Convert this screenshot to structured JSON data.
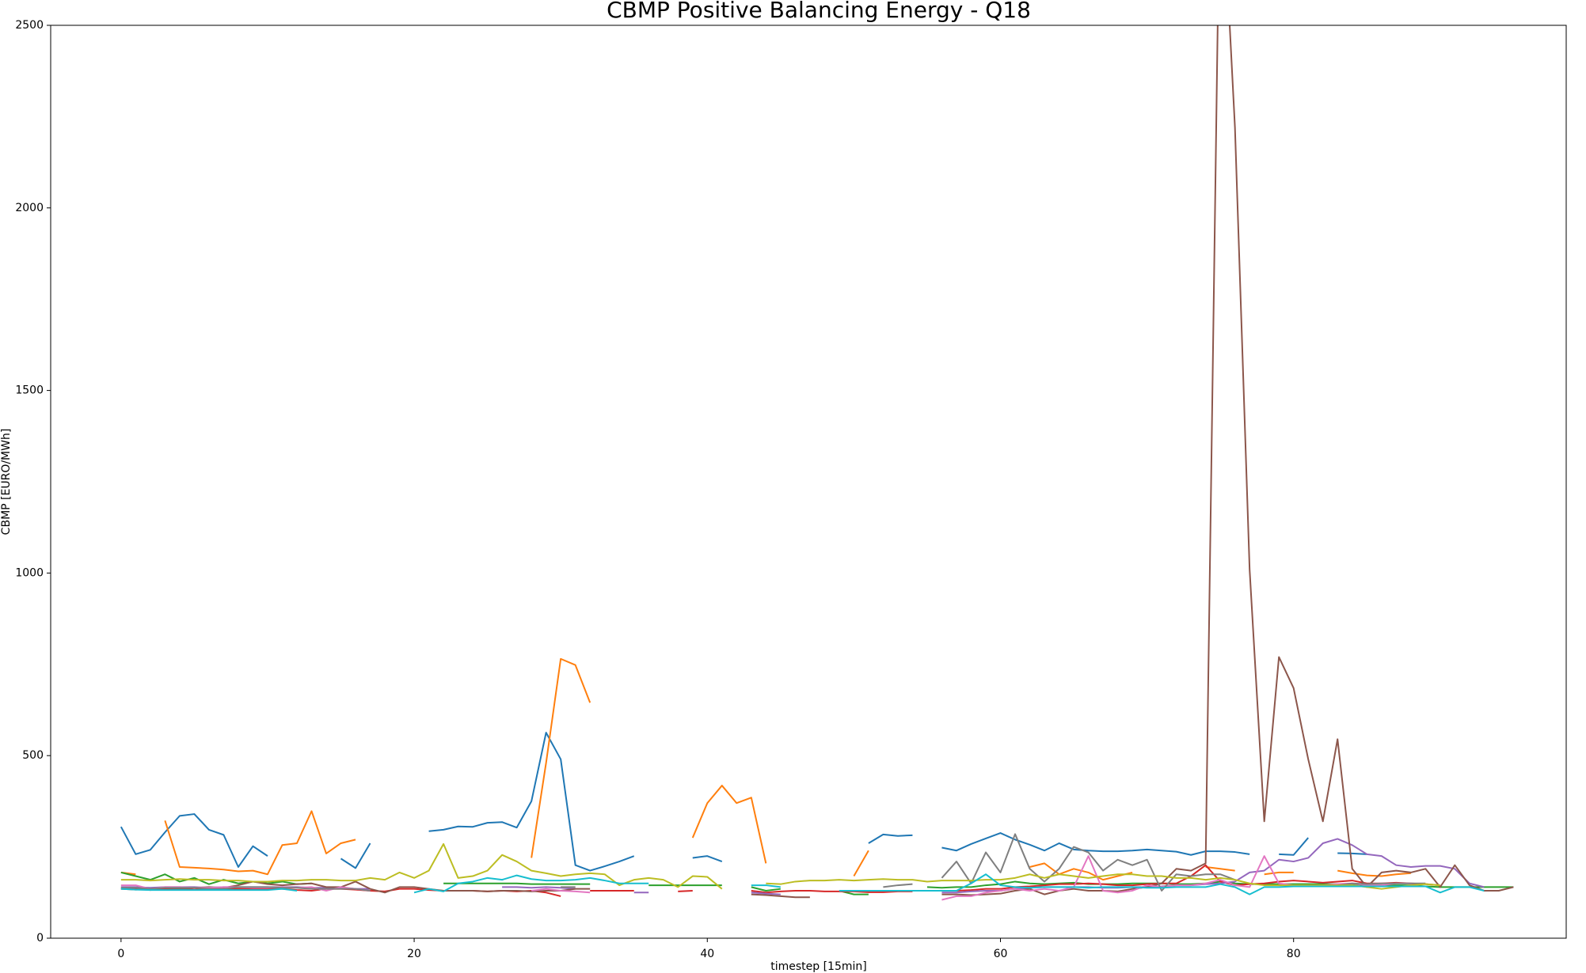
{
  "chart_data": {
    "type": "line",
    "title": "CBMP Positive Balancing Energy - Q18",
    "x_label": "timestep [15min]",
    "y_label": "CBMP [EURO/MWh]",
    "x": [
      0,
      1,
      2,
      3,
      4,
      5,
      6,
      7,
      8,
      9,
      10,
      11,
      12,
      13,
      14,
      15,
      16,
      17,
      18,
      19,
      20,
      21,
      22,
      23,
      24,
      25,
      26,
      27,
      28,
      29,
      30,
      31,
      32,
      33,
      34,
      35,
      36,
      37,
      38,
      39,
      40,
      41,
      42,
      43,
      44,
      45,
      46,
      47,
      48,
      49,
      50,
      51,
      52,
      53,
      54,
      55,
      56,
      57,
      58,
      59,
      60,
      61,
      62,
      63,
      64,
      65,
      66,
      67,
      68,
      69,
      70,
      71,
      72,
      73,
      74,
      75,
      76,
      77,
      78,
      79,
      80,
      81,
      82,
      83,
      84,
      85,
      86,
      87,
      88,
      89,
      90,
      91,
      92,
      93,
      94,
      95
    ],
    "xlim": [
      -4.8,
      98.6
    ],
    "xticks": [
      0,
      20,
      40,
      60,
      80
    ],
    "ylim": [
      0,
      2500
    ],
    "yticks": [
      0,
      500,
      1000,
      1500,
      2000,
      2500
    ],
    "series": [
      {
        "color": "#1f77b4",
        "values": [
          305,
          230,
          242,
          290,
          335,
          340,
          297,
          283,
          195,
          252,
          225,
          null,
          null,
          null,
          null,
          218,
          192,
          260,
          null,
          null,
          null,
          293,
          297,
          306,
          305,
          316,
          318,
          303,
          375,
          563,
          490,
          200,
          185,
          197,
          210,
          225,
          null,
          null,
          null,
          220,
          225,
          210,
          null,
          null,
          null,
          null,
          null,
          null,
          null,
          null,
          null,
          260,
          284,
          280,
          282,
          null,
          248,
          240,
          258,
          273,
          288,
          270,
          256,
          240,
          260,
          243,
          240,
          238,
          238,
          240,
          243,
          240,
          237,
          228,
          238,
          238,
          236,
          230,
          null,
          230,
          228,
          275,
          null,
          233,
          232,
          230,
          null,
          null,
          null,
          null,
          null,
          null,
          null,
          null,
          null,
          null
        ]
      },
      {
        "color": "#ff7f0e",
        "values": [
          180,
          175,
          null,
          322,
          195,
          193,
          191,
          188,
          183,
          185,
          175,
          255,
          260,
          348,
          232,
          260,
          270,
          null,
          null,
          null,
          null,
          null,
          null,
          null,
          null,
          null,
          null,
          null,
          220,
          480,
          765,
          748,
          645,
          null,
          null,
          null,
          null,
          null,
          null,
          275,
          370,
          418,
          370,
          385,
          205,
          null,
          null,
          null,
          null,
          null,
          170,
          240,
          null,
          null,
          null,
          null,
          null,
          null,
          null,
          null,
          null,
          null,
          195,
          205,
          175,
          190,
          180,
          160,
          170,
          180,
          null,
          null,
          null,
          null,
          195,
          190,
          185,
          null,
          175,
          180,
          180,
          null,
          null,
          185,
          178,
          172,
          170,
          175,
          178,
          null,
          null,
          null,
          null,
          null,
          null,
          null
        ]
      },
      {
        "color": "#2ca02c",
        "values": [
          180,
          170,
          160,
          175,
          155,
          165,
          148,
          160,
          150,
          155,
          150,
          155,
          148,
          150,
          null,
          null,
          null,
          null,
          null,
          null,
          null,
          null,
          150,
          150,
          150,
          150,
          150,
          150,
          148,
          148,
          148,
          148,
          148,
          null,
          null,
          null,
          145,
          145,
          145,
          145,
          145,
          145,
          null,
          140,
          130,
          135,
          null,
          null,
          null,
          130,
          120,
          120,
          null,
          null,
          null,
          140,
          138,
          140,
          140,
          145,
          148,
          155,
          150,
          148,
          150,
          152,
          148,
          148,
          148,
          150,
          150,
          150,
          148,
          148,
          150,
          155,
          150,
          148,
          148,
          148,
          148,
          148,
          148,
          148,
          148,
          145,
          145,
          145,
          145,
          142,
          140,
          140,
          140,
          140,
          140,
          140
        ]
      },
      {
        "color": "#d62728",
        "values": [
          135,
          135,
          132,
          135,
          135,
          133,
          135,
          135,
          135,
          135,
          135,
          135,
          132,
          130,
          135,
          135,
          133,
          130,
          128,
          135,
          135,
          132,
          130,
          130,
          130,
          128,
          130,
          128,
          130,
          125,
          115,
          null,
          130,
          130,
          130,
          130,
          null,
          null,
          128,
          130,
          null,
          null,
          null,
          130,
          125,
          128,
          130,
          130,
          128,
          128,
          128,
          126,
          126,
          128,
          128,
          null,
          130,
          130,
          132,
          135,
          135,
          140,
          142,
          145,
          148,
          148,
          150,
          148,
          145,
          145,
          148,
          150,
          150,
          170,
          200,
          155,
          145,
          148,
          150,
          155,
          158,
          155,
          152,
          155,
          158,
          150,
          150,
          152,
          150,
          148,
          145,
          null,
          null,
          null,
          null,
          null
        ]
      },
      {
        "color": "#9467bd",
        "values": [
          140,
          140,
          138,
          140,
          140,
          140,
          138,
          140,
          140,
          140,
          140,
          140,
          140,
          138,
          138,
          138,
          135,
          135,
          null,
          null,
          null,
          null,
          null,
          null,
          null,
          null,
          140,
          140,
          138,
          140,
          138,
          135,
          null,
          null,
          null,
          125,
          125,
          null,
          null,
          null,
          null,
          null,
          null,
          125,
          122,
          120,
          null,
          null,
          null,
          null,
          null,
          null,
          null,
          null,
          null,
          null,
          125,
          125,
          128,
          130,
          130,
          135,
          138,
          140,
          140,
          140,
          140,
          138,
          138,
          140,
          140,
          142,
          145,
          145,
          148,
          150,
          155,
          180,
          185,
          215,
          210,
          220,
          260,
          272,
          255,
          230,
          225,
          200,
          195,
          198,
          198,
          190,
          150,
          140,
          null,
          null
        ]
      },
      {
        "color": "#8c564b",
        "values": [
          135,
          133,
          135,
          138,
          135,
          138,
          140,
          138,
          145,
          155,
          148,
          145,
          148,
          150,
          140,
          140,
          155,
          135,
          125,
          140,
          140,
          135,
          130,
          130,
          130,
          128,
          130,
          130,
          128,
          130,
          130,
          135,
          135,
          null,
          null,
          null,
          null,
          null,
          null,
          null,
          null,
          null,
          null,
          120,
          118,
          115,
          112,
          112,
          null,
          null,
          null,
          null,
          null,
          null,
          null,
          null,
          120,
          120,
          118,
          120,
          122,
          130,
          135,
          120,
          130,
          135,
          130,
          130,
          128,
          135,
          140,
          150,
          190,
          185,
          205,
          3000,
          2220,
          1010,
          320,
          770,
          685,
          490,
          320,
          545,
          190,
          140,
          180,
          185,
          180,
          190,
          140,
          200,
          145,
          130,
          130,
          140
        ]
      },
      {
        "color": "#e377c2",
        "values": [
          145,
          145,
          135,
          140,
          140,
          138,
          138,
          140,
          140,
          138,
          138,
          140,
          138,
          140,
          130,
          140,
          135,
          130,
          null,
          null,
          null,
          null,
          null,
          null,
          null,
          null,
          null,
          null,
          130,
          135,
          130,
          128,
          125,
          null,
          null,
          null,
          null,
          130,
          null,
          null,
          null,
          null,
          null,
          null,
          null,
          null,
          null,
          null,
          null,
          null,
          null,
          null,
          null,
          null,
          null,
          null,
          105,
          115,
          115,
          125,
          130,
          135,
          130,
          135,
          130,
          140,
          225,
          130,
          125,
          130,
          145,
          140,
          145,
          145,
          150,
          160,
          145,
          140,
          225,
          150,
          145,
          145,
          145,
          148,
          150,
          145,
          145,
          150,
          150,
          null,
          null,
          null,
          null,
          null,
          null,
          null
        ]
      },
      {
        "color": "#7f7f7f",
        "values": [
          138,
          138,
          135,
          138,
          138,
          138,
          135,
          135,
          140,
          140,
          140,
          138,
          138,
          135,
          135,
          135,
          135,
          130,
          null,
          null,
          null,
          null,
          null,
          null,
          null,
          null,
          null,
          null,
          null,
          null,
          140,
          140,
          null,
          null,
          null,
          null,
          null,
          null,
          null,
          null,
          null,
          null,
          null,
          null,
          null,
          null,
          null,
          null,
          null,
          null,
          null,
          null,
          140,
          145,
          148,
          null,
          165,
          210,
          150,
          235,
          180,
          285,
          190,
          155,
          190,
          250,
          235,
          185,
          215,
          200,
          215,
          130,
          175,
          170,
          175,
          175,
          160,
          null,
          null,
          null,
          null,
          null,
          null,
          145,
          150,
          148,
          150,
          150,
          150,
          150,
          null,
          null,
          null,
          null,
          null,
          null
        ]
      },
      {
        "color": "#bcbd22",
        "values": [
          160,
          160,
          158,
          160,
          162,
          160,
          160,
          158,
          158,
          155,
          155,
          158,
          158,
          160,
          160,
          158,
          158,
          165,
          160,
          180,
          165,
          185,
          258,
          165,
          170,
          185,
          228,
          210,
          185,
          178,
          170,
          175,
          178,
          175,
          145,
          160,
          165,
          160,
          140,
          170,
          168,
          135,
          null,
          null,
          150,
          148,
          155,
          158,
          158,
          160,
          158,
          160,
          162,
          160,
          160,
          155,
          158,
          158,
          158,
          160,
          160,
          165,
          175,
          165,
          175,
          170,
          165,
          170,
          175,
          175,
          170,
          170,
          165,
          165,
          160,
          165,
          160,
          150,
          145,
          145,
          145,
          145,
          145,
          145,
          145,
          140,
          135,
          140,
          145,
          148,
          145,
          null,
          null,
          null,
          null,
          null
        ]
      },
      {
        "color": "#17becf",
        "values": [
          135,
          133,
          132,
          132,
          132,
          132,
          132,
          132,
          132,
          132,
          132,
          135,
          130,
          null,
          null,
          null,
          null,
          null,
          null,
          null,
          125,
          135,
          128,
          150,
          155,
          165,
          160,
          172,
          162,
          158,
          158,
          160,
          165,
          158,
          150,
          150,
          150,
          null,
          null,
          null,
          null,
          null,
          null,
          145,
          145,
          140,
          null,
          null,
          null,
          130,
          130,
          130,
          130,
          130,
          130,
          130,
          130,
          130,
          150,
          175,
          145,
          140,
          138,
          140,
          140,
          140,
          138,
          140,
          140,
          140,
          138,
          138,
          140,
          140,
          140,
          148,
          140,
          120,
          140,
          140,
          142,
          142,
          142,
          142,
          142,
          142,
          142,
          142,
          142,
          142,
          125,
          140,
          140,
          130,
          null,
          null
        ]
      }
    ]
  }
}
